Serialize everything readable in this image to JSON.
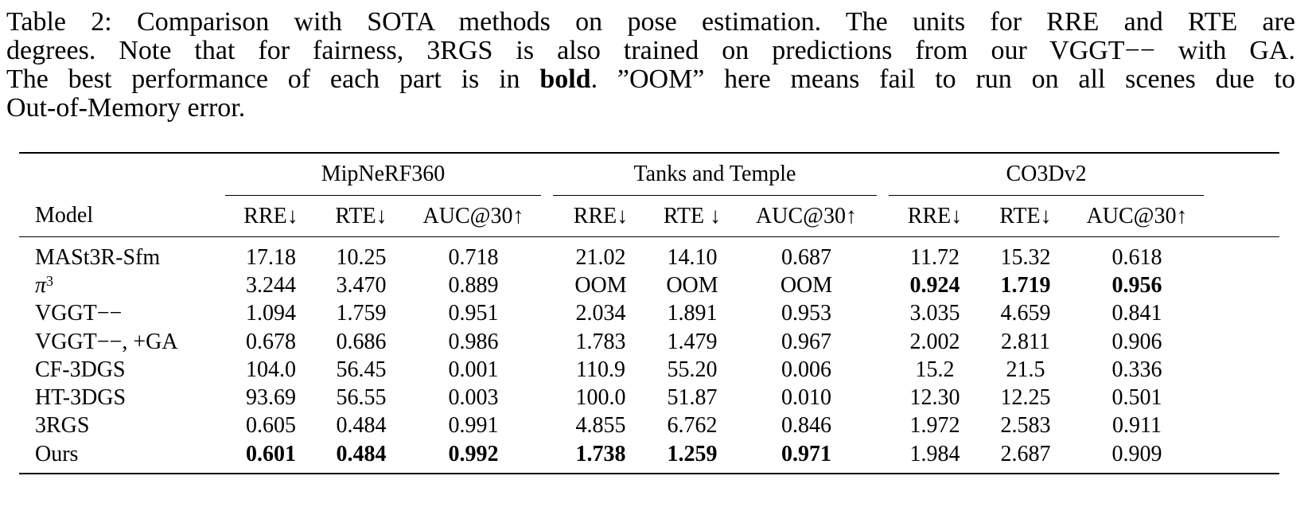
{
  "caption": {
    "line1": "Table 2: Comparison with SOTA methods on pose estimation. The units for RRE and RTE are",
    "line2": "degrees. Note that for fairness, 3RGS is also trained on predictions from our VGGT−− with GA.",
    "line3_a": "The best performance of each part is in ",
    "line3_bold": "bold",
    "line3_b": ". ”OOM” here means fail to run on all scenes due to",
    "line4": "Out-of-Memory error."
  },
  "table": {
    "groups": [
      "MipNeRF360",
      "Tanks and Temple",
      "CO3Dv2"
    ],
    "model_header": "Model",
    "columns": [
      "RRE↓",
      "RTE↓",
      "AUC@30↑",
      "RRE↓",
      "RTE ↓",
      "AUC@30↑",
      "RRE↓",
      "RTE↓",
      "AUC@30↑"
    ],
    "rows": [
      {
        "model": "MASt3R-Sfm",
        "values": [
          "17.18",
          "10.25",
          "0.718",
          "21.02",
          "14.10",
          "0.687",
          "11.72",
          "15.32",
          "0.618"
        ],
        "bold": []
      },
      {
        "model": "π",
        "model_sup": "3",
        "values": [
          "3.244",
          "3.470",
          "0.889",
          "OOM",
          "OOM",
          "OOM",
          "0.924",
          "1.719",
          "0.956"
        ],
        "bold": [
          6,
          7,
          8
        ]
      },
      {
        "model": "VGGT−−",
        "values": [
          "1.094",
          "1.759",
          "0.951",
          "2.034",
          "1.891",
          "0.953",
          "3.035",
          "4.659",
          "0.841"
        ],
        "bold": []
      },
      {
        "model": "VGGT−−, +GA",
        "values": [
          "0.678",
          "0.686",
          "0.986",
          "1.783",
          "1.479",
          "0.967",
          "2.002",
          "2.811",
          "0.906"
        ],
        "bold": []
      },
      {
        "model": "CF-3DGS",
        "values": [
          "104.0",
          "56.45",
          "0.001",
          "110.9",
          "55.20",
          "0.006",
          "15.2",
          "21.5",
          "0.336"
        ],
        "bold": []
      },
      {
        "model": "HT-3DGS",
        "values": [
          "93.69",
          "56.55",
          "0.003",
          "100.0",
          "51.87",
          "0.010",
          "12.30",
          "12.25",
          "0.501"
        ],
        "bold": []
      },
      {
        "model": "3RGS",
        "values": [
          "0.605",
          "0.484",
          "0.991",
          "4.855",
          "6.762",
          "0.846",
          "1.972",
          "2.583",
          "0.911"
        ],
        "bold": []
      },
      {
        "model": "Ours",
        "values": [
          "0.601",
          "0.484",
          "0.992",
          "1.738",
          "1.259",
          "0.971",
          "1.984",
          "2.687",
          "0.909"
        ],
        "bold": [
          0,
          1,
          2,
          3,
          4,
          5
        ]
      }
    ]
  }
}
